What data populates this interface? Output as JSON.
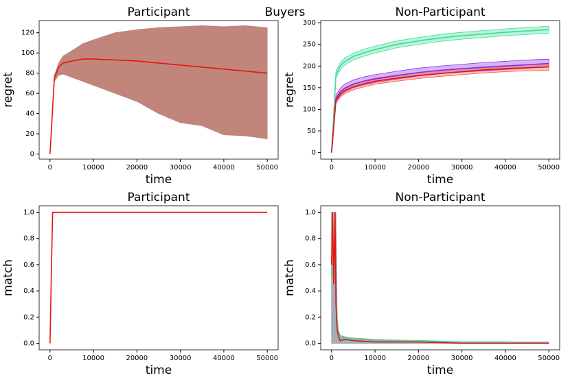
{
  "title": "Buyers",
  "chart_data": [
    {
      "type": "line",
      "title": "Participant",
      "xlabel": "time",
      "ylabel": "regret",
      "x": [
        0,
        1000,
        2000,
        3000,
        5000,
        7500,
        10000,
        15000,
        20000,
        25000,
        30000,
        35000,
        40000,
        45000,
        50000
      ],
      "xlim": [
        -2500,
        52500
      ],
      "xticks": [
        0,
        10000,
        20000,
        30000,
        40000,
        50000
      ],
      "ylim": [
        -5,
        132
      ],
      "yticks": [
        0,
        20,
        40,
        60,
        80,
        100,
        120
      ],
      "series": [
        {
          "color": "#e8130c",
          "band_color": "#c1857c",
          "band_opacity": 1,
          "values": [
            0,
            75,
            86,
            90,
            92,
            94,
            94,
            93,
            92,
            90,
            88,
            86,
            84,
            82,
            80
          ],
          "upper": [
            0,
            78,
            90,
            97,
            102,
            109,
            113,
            120,
            123,
            125,
            126,
            127,
            126,
            127,
            125
          ],
          "lower": [
            0,
            72,
            78,
            79,
            76,
            72,
            68,
            60,
            52,
            40,
            31,
            28,
            19,
            18,
            15
          ]
        }
      ]
    },
    {
      "type": "line",
      "title": "Non-Participant",
      "xlabel": "time",
      "ylabel": "regret",
      "x": [
        0,
        1000,
        2000,
        3000,
        5000,
        7500,
        10000,
        15000,
        20000,
        25000,
        30000,
        35000,
        40000,
        45000,
        50000
      ],
      "xlim": [
        -2500,
        52500
      ],
      "xticks": [
        0,
        10000,
        20000,
        30000,
        40000,
        50000
      ],
      "ylim": [
        -15,
        305
      ],
      "yticks": [
        0,
        50,
        100,
        150,
        200,
        250,
        300
      ],
      "series": [
        {
          "color": "#3ddc97",
          "band_color": "#3ddc97",
          "band_opacity": 0.35,
          "values": [
            0,
            180,
            200,
            210,
            222,
            231,
            238,
            250,
            258,
            265,
            270,
            274,
            278,
            281,
            284
          ],
          "upper": [
            0,
            188,
            208,
            218,
            230,
            239,
            246,
            258,
            266,
            273,
            278,
            282,
            286,
            289,
            292
          ],
          "lower": [
            0,
            172,
            192,
            202,
            214,
            223,
            230,
            242,
            250,
            257,
            262,
            266,
            270,
            273,
            276
          ]
        },
        {
          "color": "#8a2be2",
          "band_color": "#8a2be2",
          "band_opacity": 0.35,
          "values": [
            0,
            125,
            140,
            148,
            158,
            165,
            170,
            178,
            185,
            190,
            194,
            197,
            200,
            203,
            206
          ],
          "upper": [
            0,
            133,
            149,
            158,
            168,
            175,
            180,
            188,
            195,
            200,
            204,
            208,
            211,
            214,
            216
          ],
          "lower": [
            0,
            118,
            132,
            140,
            150,
            157,
            162,
            170,
            177,
            182,
            186,
            189,
            192,
            195,
            198
          ]
        },
        {
          "color": "#e8130c",
          "band_color": "#f0503c",
          "band_opacity": 0.35,
          "values": [
            0,
            120,
            135,
            143,
            152,
            159,
            165,
            172,
            178,
            183,
            187,
            191,
            194,
            196,
            198
          ],
          "upper": [
            0,
            127,
            142,
            150,
            159,
            166,
            172,
            179,
            185,
            190,
            194,
            198,
            201,
            203,
            205
          ],
          "lower": [
            0,
            113,
            128,
            136,
            145,
            152,
            158,
            165,
            171,
            176,
            180,
            184,
            187,
            189,
            190
          ]
        }
      ]
    },
    {
      "type": "line",
      "title": "Participant",
      "xlabel": "time",
      "ylabel": "match",
      "x": [
        0,
        300,
        600,
        50000
      ],
      "xlim": [
        -2500,
        52500
      ],
      "xticks": [
        0,
        10000,
        20000,
        30000,
        40000,
        50000
      ],
      "ylim": [
        -0.05,
        1.05
      ],
      "yticks": [
        {
          "value": 0,
          "label": "0.0"
        },
        {
          "value": 0.2,
          "label": "0.2"
        },
        {
          "value": 0.4,
          "label": "0.4"
        },
        {
          "value": 0.6,
          "label": "0.6"
        },
        {
          "value": 0.8,
          "label": "0.8"
        },
        {
          "value": 1,
          "label": "1.0"
        }
      ],
      "series": [
        {
          "color": "#e8130c",
          "values": [
            0,
            0.52,
            1,
            1
          ]
        }
      ]
    },
    {
      "type": "line",
      "title": "Non-Participant",
      "xlabel": "time",
      "ylabel": "match",
      "x": [
        0,
        200,
        500,
        800,
        1000,
        1300,
        1600,
        2000,
        3000,
        5000,
        10000,
        20000,
        30000,
        40000,
        50000
      ],
      "xlim": [
        -2500,
        52500
      ],
      "xticks": [
        0,
        10000,
        20000,
        30000,
        40000,
        50000
      ],
      "ylim": [
        -0.05,
        1.05
      ],
      "yticks": [
        {
          "value": 0,
          "label": "0.0"
        },
        {
          "value": 0.2,
          "label": "0.2"
        },
        {
          "value": 0.4,
          "label": "0.4"
        },
        {
          "value": 0.6,
          "label": "0.6"
        },
        {
          "value": 0.8,
          "label": "0.8"
        },
        {
          "value": 1,
          "label": "1.0"
        }
      ],
      "series": [
        {
          "color": "#3ddc97",
          "values": [
            0.5,
            1,
            0.6,
            0.9,
            0.38,
            0.15,
            0.08,
            0.05,
            0.04,
            0.03,
            0.02,
            0.02,
            0.01,
            0.01,
            0
          ]
        },
        {
          "color": "#e8130c",
          "band_color": "#8c9aa8",
          "band_opacity": 0.8,
          "values": [
            0.6,
            1,
            0.45,
            1,
            0.3,
            0.1,
            0.05,
            0.02,
            0.03,
            0.02,
            0.01,
            0.01,
            0,
            0,
            0
          ],
          "upper": [
            1,
            1,
            1,
            1,
            1,
            0.2,
            0.1,
            0.06,
            0.05,
            0.04,
            0.03,
            0.02,
            0.01,
            0.01,
            0.01
          ],
          "lower": [
            0,
            0,
            0,
            0,
            0,
            0,
            0,
            0,
            0,
            0,
            0,
            0,
            0,
            0,
            0
          ]
        }
      ]
    }
  ]
}
